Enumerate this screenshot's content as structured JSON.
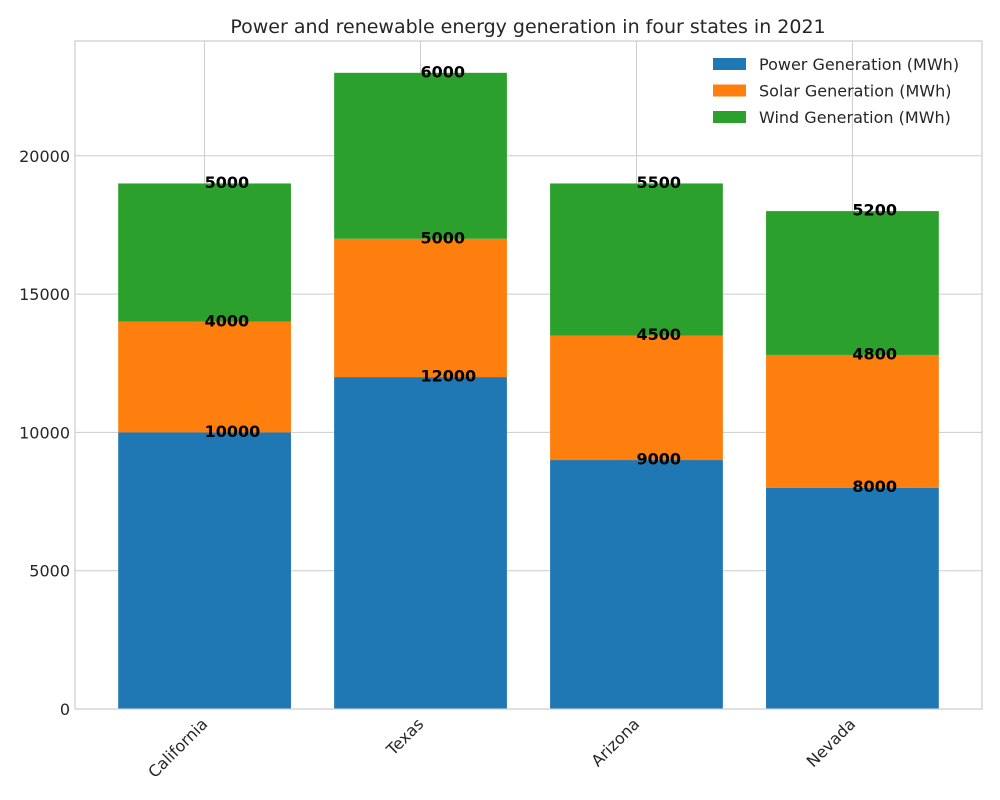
{
  "chart_data": {
    "type": "bar",
    "stacked": true,
    "title": "Power and renewable energy generation in four states in 2021",
    "xlabel": "",
    "ylabel": "",
    "categories": [
      "California",
      "Texas",
      "Arizona",
      "Nevada"
    ],
    "series": [
      {
        "name": "Power Generation (MWh)",
        "color": "#1f77b4",
        "values": [
          10000,
          12000,
          9000,
          8000
        ]
      },
      {
        "name": "Solar Generation (MWh)",
        "color": "#ff7f0e",
        "values": [
          4000,
          5000,
          4500,
          4800
        ]
      },
      {
        "name": "Wind Generation (MWh)",
        "color": "#2ca02c",
        "values": [
          5000,
          6000,
          5500,
          5200
        ]
      }
    ],
    "ylim": [
      0,
      24150
    ],
    "yticks": [
      0,
      5000,
      10000,
      15000,
      20000
    ],
    "x_tick_rotation": 45,
    "grid": true,
    "legend_position": "top-right"
  }
}
